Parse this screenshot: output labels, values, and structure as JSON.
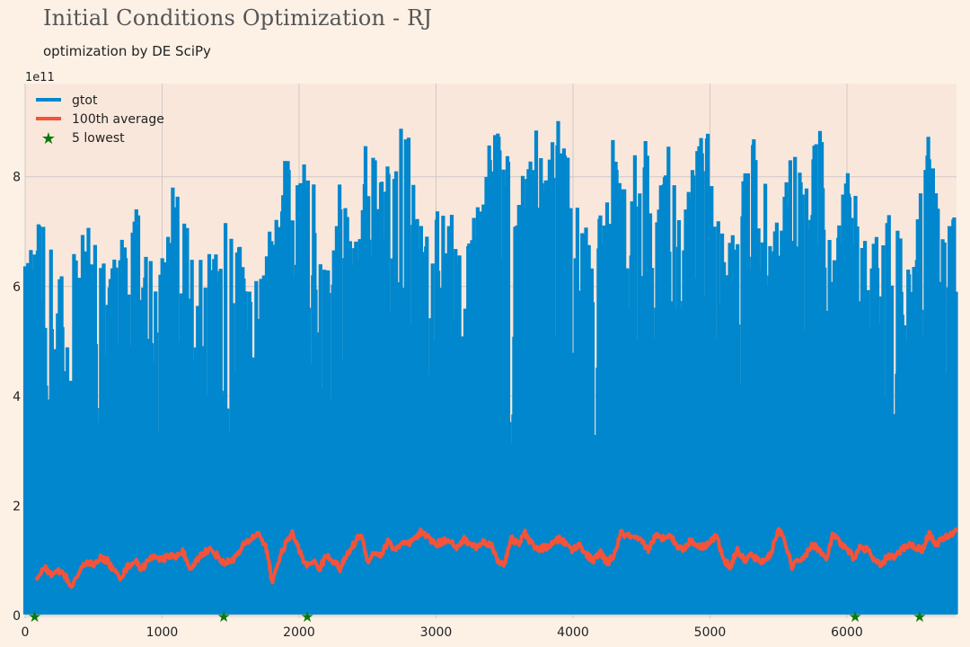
{
  "chart_data": {
    "type": "line",
    "title": "Initial Conditions Optimization - RJ",
    "subtitle": "optimization by DE SciPy",
    "xlabel": "",
    "ylabel": "",
    "y_offset_label": "1e11",
    "xlim": [
      0,
      6800
    ],
    "ylim": [
      -0.05,
      9.7
    ],
    "y_scale": 100000000000.0,
    "x_ticks": [
      0,
      1000,
      2000,
      3000,
      4000,
      5000,
      6000
    ],
    "y_ticks": [
      0,
      2,
      4,
      6,
      8
    ],
    "grid": true,
    "legend_position": "top-left",
    "colors": {
      "gtot": "#0087cd",
      "average": "#f4533a",
      "lowest": "#0b7a0b",
      "plot_bg": "#fae7db",
      "page_bg": "#fdf1e6",
      "grid": "#cfc9c6"
    },
    "series": [
      {
        "name": "gtot",
        "kind": "line",
        "note_envelope": "peak envelope of dense oscillating signal, floor ~0",
        "x": [
          0,
          100,
          200,
          300,
          400,
          500,
          600,
          700,
          800,
          900,
          1000,
          1100,
          1200,
          1300,
          1400,
          1500,
          1600,
          1700,
          1800,
          1900,
          2000,
          2100,
          2200,
          2300,
          2400,
          2500,
          2600,
          2700,
          2800,
          2900,
          3000,
          3100,
          3200,
          3300,
          3400,
          3500,
          3600,
          3700,
          3800,
          3900,
          4000,
          4100,
          4200,
          4300,
          4400,
          4500,
          4600,
          4700,
          4800,
          4900,
          5000,
          5100,
          5200,
          5300,
          5400,
          5500,
          5600,
          5700,
          5800,
          5900,
          6000,
          6100,
          6200,
          6300,
          6400,
          6500,
          6600,
          6700,
          6800
        ],
        "peak": [
          6.4,
          7.2,
          6.9,
          6.3,
          7.2,
          7.1,
          6.5,
          7.0,
          7.7,
          7.3,
          6.5,
          8.4,
          6.9,
          6.6,
          6.7,
          7.7,
          6.3,
          6.1,
          7.2,
          8.4,
          8.2,
          8.5,
          6.6,
          8.5,
          6.9,
          9.0,
          8.4,
          8.8,
          9.0,
          7.0,
          7.5,
          7.6,
          6.8,
          7.4,
          8.8,
          8.8,
          7.5,
          9.2,
          8.1,
          9.3,
          7.8,
          7.3,
          7.3,
          9.2,
          8.0,
          9.2,
          7.4,
          8.9,
          7.2,
          8.8,
          8.9,
          7.2,
          7.0,
          9.2,
          8.3,
          7.1,
          8.7,
          7.8,
          9.1,
          6.9,
          8.6,
          7.1,
          6.9,
          7.5,
          7.1,
          7.0,
          8.9,
          7.5,
          7.5
        ]
      },
      {
        "name": "100th average",
        "kind": "line",
        "x": [
          80,
          150,
          200,
          250,
          300,
          330,
          400,
          450,
          500,
          550,
          600,
          650,
          700,
          750,
          800,
          850,
          900,
          950,
          1000,
          1050,
          1100,
          1150,
          1200,
          1250,
          1300,
          1350,
          1400,
          1450,
          1500,
          1550,
          1600,
          1650,
          1700,
          1750,
          1780,
          1800,
          1850,
          1900,
          1950,
          2000,
          2050,
          2100,
          2150,
          2200,
          2250,
          2300,
          2350,
          2400,
          2450,
          2500,
          2550,
          2600,
          2650,
          2700,
          2750,
          2800,
          2850,
          2900,
          2950,
          3000,
          3050,
          3100,
          3150,
          3200,
          3250,
          3300,
          3350,
          3400,
          3450,
          3500,
          3550,
          3600,
          3650,
          3700,
          3750,
          3800,
          3850,
          3900,
          3950,
          4000,
          4050,
          4100,
          4150,
          4200,
          4250,
          4300,
          4350,
          4400,
          4450,
          4500,
          4550,
          4600,
          4650,
          4700,
          4750,
          4800,
          4850,
          4900,
          4950,
          5000,
          5050,
          5100,
          5150,
          5200,
          5250,
          5300,
          5350,
          5400,
          5450,
          5500,
          5550,
          5600,
          5650,
          5700,
          5750,
          5800,
          5850,
          5900,
          5950,
          6000,
          6050,
          6100,
          6150,
          6200,
          6250,
          6300,
          6350,
          6400,
          6450,
          6500,
          6550,
          6600,
          6650,
          6700,
          6750,
          6800
        ],
        "values": [
          0.7,
          0.85,
          0.75,
          0.8,
          0.7,
          0.5,
          0.8,
          1.0,
          0.9,
          1.05,
          1.0,
          0.8,
          0.7,
          0.9,
          1.0,
          0.85,
          1.0,
          1.1,
          1.0,
          1.1,
          1.05,
          1.2,
          0.8,
          1.0,
          1.15,
          1.2,
          1.1,
          0.95,
          1.0,
          1.1,
          1.3,
          1.4,
          1.5,
          1.3,
          1.0,
          0.6,
          1.0,
          1.3,
          1.5,
          1.2,
          0.9,
          1.0,
          0.85,
          1.1,
          1.0,
          0.85,
          1.1,
          1.3,
          1.5,
          1.0,
          1.15,
          1.1,
          1.35,
          1.2,
          1.3,
          1.3,
          1.4,
          1.55,
          1.4,
          1.3,
          1.35,
          1.4,
          1.2,
          1.4,
          1.3,
          1.25,
          1.35,
          1.3,
          1.0,
          0.95,
          1.4,
          1.3,
          1.5,
          1.3,
          1.2,
          1.25,
          1.3,
          1.4,
          1.3,
          1.2,
          1.3,
          1.1,
          1.0,
          1.15,
          0.95,
          1.1,
          1.5,
          1.45,
          1.4,
          1.35,
          1.2,
          1.45,
          1.4,
          1.5,
          1.3,
          1.2,
          1.35,
          1.3,
          1.25,
          1.35,
          1.45,
          1.0,
          0.9,
          1.2,
          1.0,
          1.1,
          1.0,
          1.0,
          1.15,
          1.6,
          1.3,
          0.9,
          1.0,
          1.1,
          1.3,
          1.2,
          1.0,
          1.5,
          1.3,
          1.2,
          1.05,
          1.25,
          1.2,
          1.0,
          0.9,
          1.1,
          1.05,
          1.2,
          1.3,
          1.25,
          1.2,
          1.5,
          1.3,
          1.4,
          1.45,
          1.6
        ]
      },
      {
        "name": "5 lowest",
        "kind": "scatter",
        "marker": "star",
        "x": [
          70,
          1450,
          2060,
          6060,
          6530
        ],
        "values": [
          0,
          0,
          0,
          0,
          0
        ]
      }
    ]
  }
}
